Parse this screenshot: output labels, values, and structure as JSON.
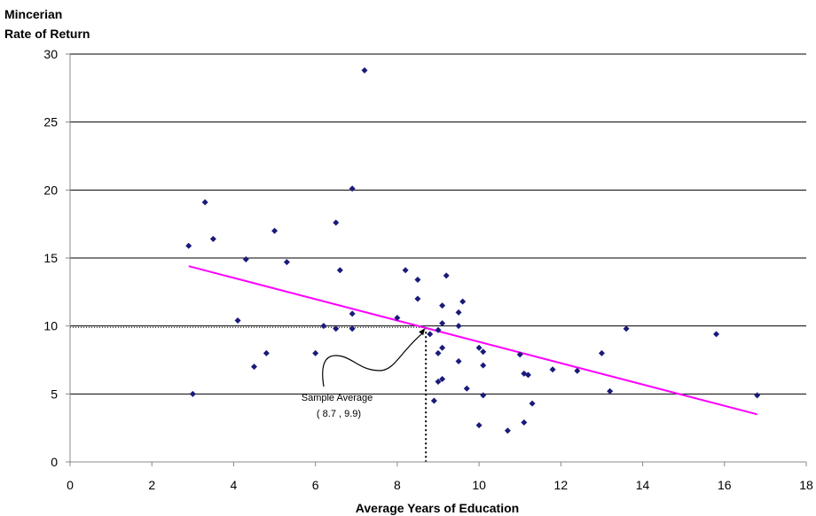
{
  "chart_data": {
    "type": "scatter",
    "title": "",
    "ylabel_line1": "Mincerian",
    "ylabel_line2": "Rate of Return",
    "xlabel": "Average Years of Education",
    "xlim": [
      0,
      18
    ],
    "ylim": [
      0,
      30
    ],
    "x_ticks": [
      0,
      2,
      4,
      6,
      8,
      10,
      12,
      14,
      16,
      18
    ],
    "y_ticks": [
      0,
      5,
      10,
      15,
      20,
      25,
      30
    ],
    "grid": "horizontal",
    "marker_color": "#1a1a7a",
    "trendline_color": "#ff00ff",
    "points": [
      {
        "x": 2.9,
        "y": 15.9
      },
      {
        "x": 3.0,
        "y": 5.0
      },
      {
        "x": 3.3,
        "y": 19.1
      },
      {
        "x": 3.5,
        "y": 16.4
      },
      {
        "x": 4.1,
        "y": 10.4
      },
      {
        "x": 4.3,
        "y": 14.9
      },
      {
        "x": 4.5,
        "y": 7.0
      },
      {
        "x": 4.8,
        "y": 8.0
      },
      {
        "x": 5.0,
        "y": 17.0
      },
      {
        "x": 5.3,
        "y": 14.7
      },
      {
        "x": 6.0,
        "y": 8.0
      },
      {
        "x": 6.2,
        "y": 10.0
      },
      {
        "x": 6.5,
        "y": 17.6
      },
      {
        "x": 6.5,
        "y": 9.8
      },
      {
        "x": 6.6,
        "y": 14.1
      },
      {
        "x": 6.9,
        "y": 20.1
      },
      {
        "x": 6.9,
        "y": 10.9
      },
      {
        "x": 6.9,
        "y": 9.8
      },
      {
        "x": 7.2,
        "y": 28.8
      },
      {
        "x": 8.0,
        "y": 10.6
      },
      {
        "x": 8.2,
        "y": 14.1
      },
      {
        "x": 8.5,
        "y": 13.4
      },
      {
        "x": 8.5,
        "y": 12.0
      },
      {
        "x": 8.8,
        "y": 9.4
      },
      {
        "x": 8.9,
        "y": 4.5
      },
      {
        "x": 9.0,
        "y": 9.7
      },
      {
        "x": 9.0,
        "y": 8.0
      },
      {
        "x": 9.0,
        "y": 5.9
      },
      {
        "x": 9.1,
        "y": 6.1
      },
      {
        "x": 9.1,
        "y": 10.2
      },
      {
        "x": 9.1,
        "y": 11.5
      },
      {
        "x": 9.1,
        "y": 8.4
      },
      {
        "x": 9.2,
        "y": 13.7
      },
      {
        "x": 9.5,
        "y": 11.0
      },
      {
        "x": 9.5,
        "y": 10.0
      },
      {
        "x": 9.5,
        "y": 7.4
      },
      {
        "x": 9.6,
        "y": 11.8
      },
      {
        "x": 9.7,
        "y": 5.4
      },
      {
        "x": 10.0,
        "y": 8.4
      },
      {
        "x": 10.0,
        "y": 2.7
      },
      {
        "x": 10.1,
        "y": 8.1
      },
      {
        "x": 10.1,
        "y": 7.1
      },
      {
        "x": 10.1,
        "y": 4.9
      },
      {
        "x": 10.7,
        "y": 2.3
      },
      {
        "x": 11.0,
        "y": 7.9
      },
      {
        "x": 11.1,
        "y": 6.5
      },
      {
        "x": 11.1,
        "y": 2.9
      },
      {
        "x": 11.2,
        "y": 6.4
      },
      {
        "x": 11.3,
        "y": 4.3
      },
      {
        "x": 11.8,
        "y": 6.8
      },
      {
        "x": 12.4,
        "y": 6.7
      },
      {
        "x": 13.0,
        "y": 8.0
      },
      {
        "x": 13.2,
        "y": 5.2
      },
      {
        "x": 13.6,
        "y": 9.8
      },
      {
        "x": 15.8,
        "y": 9.4
      },
      {
        "x": 16.8,
        "y": 4.9
      }
    ],
    "trendline": {
      "x1": 2.9,
      "y1": 14.4,
      "x2": 16.8,
      "y2": 3.5
    },
    "annotation": {
      "line1": "Sample Average",
      "line2": "( 8.7 , 9.9)",
      "x": 8.7,
      "y": 9.9
    }
  }
}
